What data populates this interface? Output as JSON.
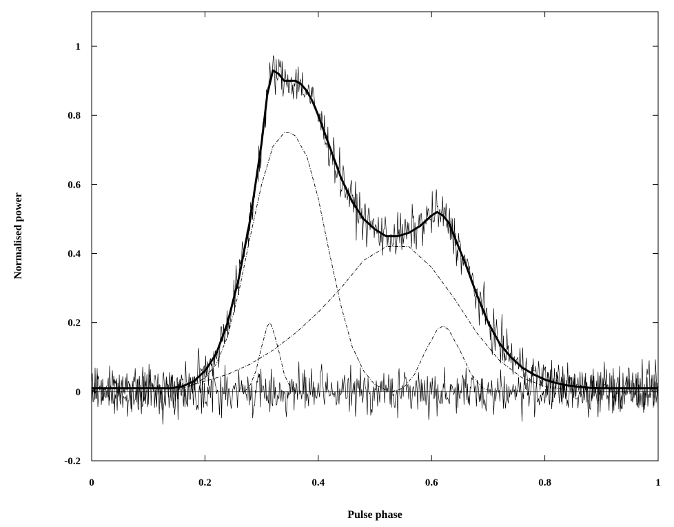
{
  "chart_data": {
    "type": "line",
    "title": "",
    "xlabel": "Pulse phase",
    "ylabel": "Normalised power",
    "xlim": [
      0,
      1
    ],
    "ylim": [
      -0.2,
      1.1
    ],
    "grid": false,
    "legend": "none",
    "xticks": [
      0,
      0.2,
      0.4,
      0.6,
      0.8,
      1
    ],
    "xtick_labels": [
      "0",
      "0.2",
      "0.4",
      "0.6",
      "0.8",
      "1"
    ],
    "yticks": [
      -0.2,
      0,
      0.2,
      0.4,
      0.6,
      0.8,
      1
    ],
    "ytick_labels": [
      "-0.2",
      "0",
      "0.2",
      "0.4",
      "0.6",
      "0.8",
      "1"
    ],
    "series": [
      {
        "role": "data",
        "style": "thin-noisy",
        "x": [
          0,
          0.02,
          0.04,
          0.06,
          0.08,
          0.1,
          0.12,
          0.14,
          0.16,
          0.18,
          0.2,
          0.22,
          0.24,
          0.26,
          0.28,
          0.3,
          0.31,
          0.32,
          0.33,
          0.34,
          0.35,
          0.36,
          0.37,
          0.38,
          0.39,
          0.4,
          0.42,
          0.44,
          0.46,
          0.48,
          0.5,
          0.52,
          0.54,
          0.56,
          0.58,
          0.6,
          0.61,
          0.62,
          0.63,
          0.64,
          0.66,
          0.68,
          0.7,
          0.72,
          0.74,
          0.76,
          0.78,
          0.8,
          0.82,
          0.84,
          0.86,
          0.88,
          0.9,
          0.92,
          0.94,
          0.96,
          0.98,
          1
        ],
        "y": [
          0.01,
          0.01,
          0.01,
          0.01,
          0.01,
          0.01,
          0.01,
          0.01,
          0.015,
          0.03,
          0.06,
          0.11,
          0.2,
          0.33,
          0.5,
          0.72,
          0.86,
          0.93,
          0.92,
          0.9,
          0.9,
          0.9,
          0.89,
          0.87,
          0.84,
          0.8,
          0.71,
          0.62,
          0.55,
          0.5,
          0.47,
          0.45,
          0.45,
          0.46,
          0.48,
          0.51,
          0.52,
          0.51,
          0.49,
          0.45,
          0.37,
          0.28,
          0.2,
          0.14,
          0.1,
          0.07,
          0.05,
          0.035,
          0.025,
          0.018,
          0.014,
          0.011,
          0.01,
          0.01,
          0.01,
          0.01,
          0.01,
          0.01
        ]
      },
      {
        "role": "residuals",
        "style": "thin-noisy",
        "x": [
          0,
          1
        ],
        "y": [
          0,
          0
        ]
      },
      {
        "role": "fit",
        "style": "thick",
        "x": [
          0,
          0.02,
          0.04,
          0.06,
          0.08,
          0.1,
          0.12,
          0.14,
          0.16,
          0.18,
          0.2,
          0.22,
          0.24,
          0.26,
          0.28,
          0.3,
          0.31,
          0.32,
          0.33,
          0.34,
          0.35,
          0.36,
          0.37,
          0.38,
          0.39,
          0.4,
          0.42,
          0.44,
          0.46,
          0.48,
          0.5,
          0.52,
          0.54,
          0.56,
          0.58,
          0.6,
          0.61,
          0.62,
          0.63,
          0.64,
          0.66,
          0.68,
          0.7,
          0.72,
          0.74,
          0.76,
          0.78,
          0.8,
          0.82,
          0.84,
          0.86,
          0.88,
          0.9,
          0.92,
          0.94,
          0.96,
          0.98,
          1
        ],
        "y": [
          0.01,
          0.01,
          0.01,
          0.01,
          0.01,
          0.01,
          0.01,
          0.01,
          0.015,
          0.03,
          0.06,
          0.11,
          0.2,
          0.33,
          0.5,
          0.72,
          0.86,
          0.93,
          0.92,
          0.9,
          0.9,
          0.9,
          0.89,
          0.87,
          0.84,
          0.8,
          0.71,
          0.62,
          0.55,
          0.5,
          0.47,
          0.45,
          0.45,
          0.46,
          0.48,
          0.51,
          0.52,
          0.51,
          0.49,
          0.45,
          0.37,
          0.28,
          0.2,
          0.14,
          0.1,
          0.07,
          0.05,
          0.035,
          0.025,
          0.018,
          0.014,
          0.011,
          0.01,
          0.01,
          0.01,
          0.01,
          0.01,
          0.01
        ]
      },
      {
        "role": "component",
        "style": "dashed",
        "x": [
          0.18,
          0.2,
          0.22,
          0.24,
          0.26,
          0.28,
          0.3,
          0.32,
          0.34,
          0.35,
          0.36,
          0.38,
          0.4,
          0.42,
          0.44,
          0.46,
          0.48,
          0.5,
          0.52
        ],
        "y": [
          0.02,
          0.04,
          0.08,
          0.16,
          0.29,
          0.45,
          0.6,
          0.71,
          0.75,
          0.75,
          0.74,
          0.68,
          0.56,
          0.4,
          0.25,
          0.13,
          0.06,
          0.02,
          0.005
        ]
      },
      {
        "role": "component",
        "style": "dashed",
        "x": [
          0.16,
          0.2,
          0.24,
          0.28,
          0.32,
          0.36,
          0.4,
          0.44,
          0.48,
          0.52,
          0.56,
          0.6,
          0.64,
          0.68,
          0.72,
          0.76,
          0.8,
          0.84
        ],
        "y": [
          0.01,
          0.03,
          0.05,
          0.08,
          0.12,
          0.17,
          0.23,
          0.3,
          0.38,
          0.42,
          0.42,
          0.36,
          0.27,
          0.17,
          0.09,
          0.04,
          0.015,
          0.005
        ]
      },
      {
        "role": "component",
        "style": "dashed",
        "x": [
          0.27,
          0.28,
          0.29,
          0.3,
          0.31,
          0.315,
          0.32,
          0.33,
          0.34,
          0.35,
          0.36
        ],
        "y": [
          0.0,
          0.02,
          0.06,
          0.13,
          0.19,
          0.2,
          0.18,
          0.12,
          0.05,
          0.015,
          0.0
        ]
      },
      {
        "role": "component",
        "style": "dashed",
        "x": [
          0.53,
          0.55,
          0.57,
          0.59,
          0.61,
          0.62,
          0.63,
          0.65,
          0.67,
          0.69,
          0.71
        ],
        "y": [
          0.0,
          0.01,
          0.05,
          0.12,
          0.18,
          0.19,
          0.18,
          0.12,
          0.05,
          0.01,
          0.0
        ]
      }
    ]
  }
}
